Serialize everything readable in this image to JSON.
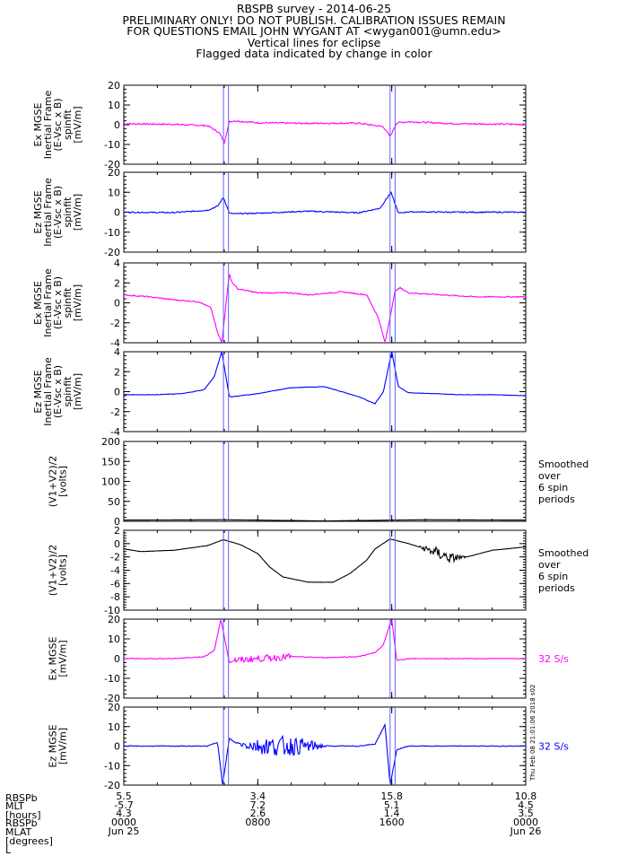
{
  "header": {
    "line1": "RBSPB survey - 2014-06-25",
    "line2": "PRELIMINARY ONLY! DO NOT PUBLISH. CALIBRATION ISSUES REMAIN",
    "line3": "FOR QUESTIONS EMAIL JOHN WYGANT AT <wygan001@umn.edu>",
    "line4": "Vertical lines for eclipse",
    "line5": "Flagged data indicated by change in color"
  },
  "colors": {
    "magenta": "#ff00ff",
    "blue": "#0000ff",
    "black": "#000000",
    "eclipse": "#6060ff"
  },
  "vertical_lines_hours": [
    5.95,
    6.25,
    15.9,
    16.2
  ],
  "side_stamp": "Thu Feb 08 21:01:06 2018 s02",
  "chart_data": [
    {
      "type": "line",
      "color": "#ff00ff",
      "ylabel": [
        "Ex MGSE",
        "Inertial Frame",
        "(E-Vsc x B)",
        "spinfit",
        "[mV/m]"
      ],
      "ylim": [
        -20,
        20
      ],
      "yticks": [
        -20,
        -10,
        0,
        10,
        20
      ],
      "right_label": [],
      "series": [
        {
          "x": [
            0,
            3,
            5,
            5.7,
            6.0,
            6.3,
            6.6,
            8,
            11,
            14,
            15.5,
            15.9,
            16.3,
            17,
            20,
            24
          ],
          "y": [
            0.5,
            0.2,
            -0.5,
            -4,
            -9,
            1.5,
            2,
            1,
            0.7,
            0.8,
            -1,
            -6,
            1,
            1.5,
            0.5,
            0.2
          ],
          "noise": 0.4
        }
      ]
    },
    {
      "type": "line",
      "color": "#0000ff",
      "ylabel": [
        "Ez MGSE",
        "Inertial Frame",
        "(E-Vsc x B)",
        "spinfit",
        "[mV/m]"
      ],
      "ylim": [
        -20,
        20
      ],
      "yticks": [
        -20,
        -10,
        0,
        10,
        20
      ],
      "right_label": [],
      "series": [
        {
          "x": [
            0,
            3,
            5,
            5.6,
            5.95,
            6.3,
            6.6,
            8,
            11,
            14,
            15.3,
            15.95,
            16.4,
            17,
            20,
            24
          ],
          "y": [
            0,
            -0.2,
            1,
            3,
            7.5,
            -0.5,
            -0.8,
            -0.5,
            0.5,
            -0.3,
            2,
            10,
            -0.5,
            0.2,
            0,
            0
          ],
          "noise": 0.3
        }
      ]
    },
    {
      "type": "line",
      "color": "#ff00ff",
      "ylabel": [
        "Ex MGSE",
        "Inertial Frame",
        "(E-Vsc x B)",
        "spinfit",
        "[mV/m]"
      ],
      "ylim": [
        -4,
        4
      ],
      "yticks": [
        -4,
        -2,
        0,
        2,
        4
      ],
      "right_label": [],
      "series": [
        {
          "x": [
            0,
            1.5,
            3,
            4.5,
            5.2,
            5.6,
            5.85,
            6.3,
            6.4,
            6.8,
            8,
            10,
            11,
            13,
            14.5,
            15.2,
            15.6,
            16.2,
            16.5,
            17,
            19,
            21,
            24
          ],
          "y": [
            0.8,
            0.6,
            0.3,
            0.1,
            -0.5,
            -3.0,
            -4.0,
            3.0,
            2.2,
            1.4,
            1.0,
            1.0,
            0.8,
            1.1,
            0.8,
            -1.5,
            -4.0,
            1.2,
            1.5,
            1.0,
            0.8,
            0.6,
            0.6
          ],
          "noise": 0.3
        }
      ]
    },
    {
      "type": "line",
      "color": "#0000ff",
      "ylabel": [
        "Ez MGSE",
        "Inertial Frame",
        "(E-Vsc x B)",
        "spinfit",
        "[mV/m]"
      ],
      "ylim": [
        -4,
        4
      ],
      "yticks": [
        -4,
        -2,
        0,
        2,
        4
      ],
      "right_label": [],
      "series": [
        {
          "x": [
            0,
            2,
            3.5,
            4.8,
            5.4,
            5.85,
            6.3,
            6.5,
            8,
            10,
            12,
            14,
            15,
            15.5,
            16.0,
            16.4,
            17,
            18.5,
            20,
            22,
            24
          ],
          "y": [
            -0.3,
            -0.3,
            -0.2,
            0.2,
            1.5,
            4.0,
            -0.5,
            -0.5,
            -0.2,
            0.4,
            0.5,
            -0.5,
            -1.2,
            0.0,
            4.0,
            0.5,
            -0.1,
            -0.2,
            -0.3,
            -0.3,
            -0.4
          ],
          "noise": 0.12
        }
      ]
    },
    {
      "type": "line",
      "color": "#000000",
      "ylabel": [
        "(V1+V2)/2",
        "[volts]"
      ],
      "ylim": [
        0,
        200
      ],
      "yticks": [
        0,
        50,
        100,
        150,
        200
      ],
      "right_label": [
        "Smoothed",
        "over",
        "6 spin",
        "periods"
      ],
      "series": [
        {
          "x": [
            0,
            6,
            12,
            18,
            24
          ],
          "y": [
            3,
            4,
            1,
            4,
            3
          ],
          "noise": 0
        }
      ]
    },
    {
      "type": "line",
      "color": "#000000",
      "ylabel": [
        "(V1+V2)/2",
        "[volts]"
      ],
      "ylim": [
        -10,
        2
      ],
      "yticks": [
        -10,
        -8,
        -6,
        -4,
        -2,
        0,
        2
      ],
      "right_label": [
        "Smoothed",
        "over",
        "6 spin",
        "periods"
      ],
      "series": [
        {
          "x": [
            0,
            1,
            3,
            5,
            5.95,
            7,
            8,
            8.7,
            9.5,
            11,
            12.5,
            13.5,
            14.5,
            15,
            15.9,
            17,
            18.5,
            19.5,
            20.5,
            22,
            24
          ],
          "y": [
            -0.8,
            -1.2,
            -1.0,
            -0.3,
            0.6,
            -0.2,
            -1.5,
            -3.5,
            -5.0,
            -5.8,
            -5.8,
            -4.5,
            -2.5,
            -0.8,
            0.7,
            0.0,
            -1.2,
            -2.2,
            -2.0,
            -1.0,
            -0.5
          ],
          "noise": 0.05
        }
      ]
    },
    {
      "type": "line",
      "color": "#ff00ff",
      "ylabel": [
        "Ex MGSE",
        "[mV/m]"
      ],
      "ylim": [
        -20,
        20
      ],
      "yticks": [
        -20,
        -10,
        0,
        10,
        20
      ],
      "right_label": [
        "32 S/s"
      ],
      "series": [
        {
          "x": [
            0,
            3,
            4.8,
            5.4,
            5.8,
            6.3,
            6.6,
            8,
            10,
            12,
            14,
            15,
            15.5,
            16.0,
            16.3,
            17,
            20,
            24
          ],
          "y": [
            0,
            0,
            1,
            4,
            20,
            -2,
            -1,
            0,
            1,
            0.5,
            1,
            3,
            7,
            20,
            -1,
            0,
            0,
            0
          ],
          "noise": 0.2
        }
      ]
    },
    {
      "type": "line",
      "color": "#0000ff",
      "ylabel": [
        "Ez MGSE",
        "[mV/m]"
      ],
      "ylim": [
        -20,
        20
      ],
      "yticks": [
        -20,
        -10,
        0,
        10,
        20
      ],
      "right_label": [
        "32 S/s"
      ],
      "series": [
        {
          "x": [
            0,
            3,
            5,
            5.6,
            5.9,
            6.3,
            6.6,
            7,
            8,
            10,
            12,
            14,
            15,
            15.6,
            15.9,
            16.3,
            16.6,
            17,
            20,
            24
          ],
          "y": [
            0,
            0,
            0,
            2,
            -20,
            4,
            2,
            1,
            0,
            0,
            0,
            0,
            1,
            11,
            -20,
            -2,
            -1,
            0,
            0,
            0
          ],
          "noise": 0.2
        }
      ]
    }
  ],
  "x_axis": {
    "row_labels": [
      "RBSPb",
      "MLT",
      "[hours]",
      "RBSPb",
      "MLAT",
      "[degrees]",
      "L"
    ],
    "ticks": [
      {
        "x": 0,
        "lines": [
          "5.5",
          "-5.7",
          "4.3",
          "0000",
          "Jun 25"
        ]
      },
      {
        "x": 8,
        "lines": [
          "3.4",
          "7.2",
          "2.6",
          "0800",
          ""
        ]
      },
      {
        "x": 16,
        "lines": [
          "15.8",
          "5.1",
          "1.4",
          "1600",
          ""
        ]
      },
      {
        "x": 24,
        "lines": [
          "10.8",
          "4.5",
          "3.5",
          "0000",
          "Jun 26"
        ]
      }
    ]
  }
}
